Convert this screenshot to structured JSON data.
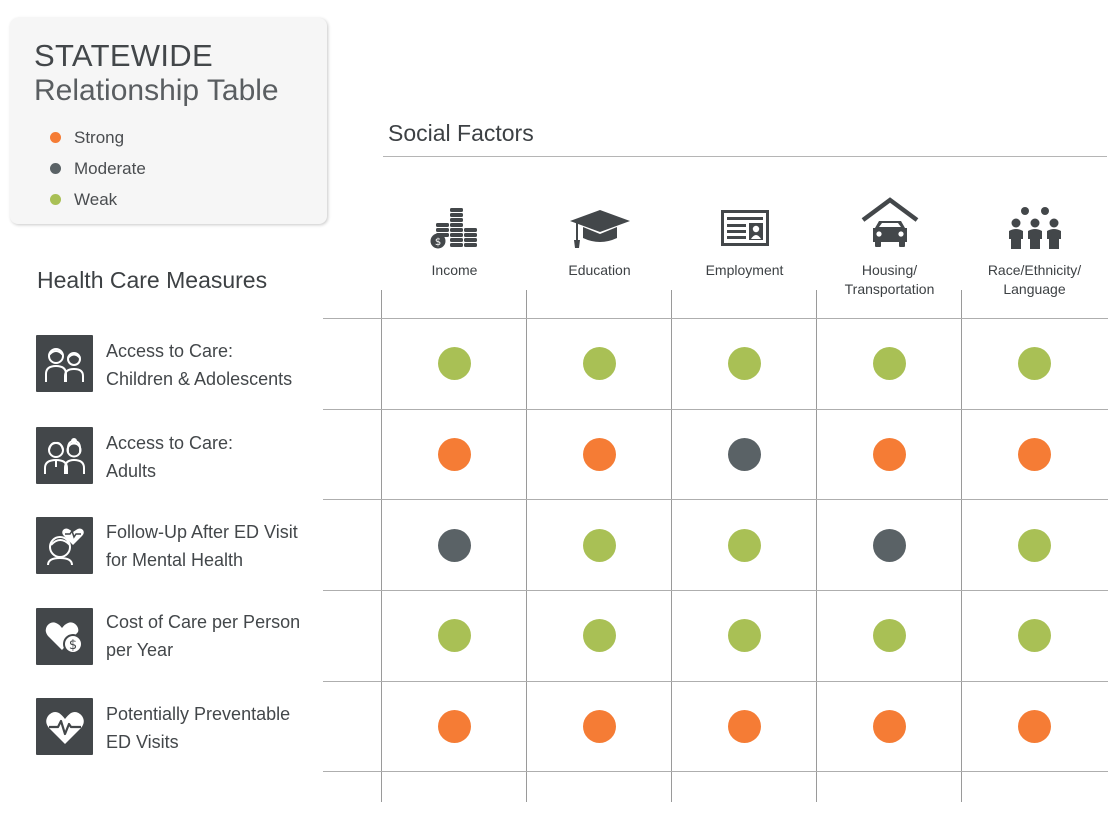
{
  "header": {
    "title": "STATEWIDE",
    "subtitle": "Relationship Table"
  },
  "legend": [
    {
      "key": "strong",
      "label": "Strong",
      "color": "#f57c35"
    },
    {
      "key": "moderate",
      "label": "Moderate",
      "color": "#5a6266"
    },
    {
      "key": "weak",
      "label": "Weak",
      "color": "#a9c055"
    }
  ],
  "social_factors": {
    "title": "Social Factors",
    "columns": [
      {
        "label": [
          "Income"
        ],
        "icon": "coin-stacks-icon"
      },
      {
        "label": [
          "Education"
        ],
        "icon": "graduation-cap-icon"
      },
      {
        "label": [
          "Employment"
        ],
        "icon": "id-card-icon"
      },
      {
        "label": [
          "Housing/",
          "Transportation"
        ],
        "icon": "house-car-icon"
      },
      {
        "label": [
          "Race/Ethnicity/",
          "Language"
        ],
        "icon": "people-group-icon"
      }
    ]
  },
  "health_care": {
    "title": "Health Care Measures",
    "rows": [
      {
        "label": [
          "Access to Care:",
          "Children & Adolescents"
        ],
        "icon": "children-icon",
        "ratings": [
          "weak",
          "weak",
          "weak",
          "weak",
          "weak"
        ]
      },
      {
        "label": [
          "Access to Care:",
          "Adults"
        ],
        "icon": "adults-icon",
        "ratings": [
          "strong",
          "strong",
          "moderate",
          "strong",
          "strong"
        ]
      },
      {
        "label": [
          "Follow-Up After ED Visit",
          "for Mental Health"
        ],
        "icon": "mental-health-icon",
        "ratings": [
          "moderate",
          "weak",
          "weak",
          "moderate",
          "weak"
        ]
      },
      {
        "label": [
          "Cost of Care per Person",
          "per Year"
        ],
        "icon": "heart-dollar-icon",
        "ratings": [
          "weak",
          "weak",
          "weak",
          "weak",
          "weak"
        ]
      },
      {
        "label": [
          "Potentially Preventable",
          "ED Visits"
        ],
        "icon": "heart-pulse-icon",
        "ratings": [
          "strong",
          "strong",
          "strong",
          "strong",
          "strong"
        ]
      }
    ]
  }
}
